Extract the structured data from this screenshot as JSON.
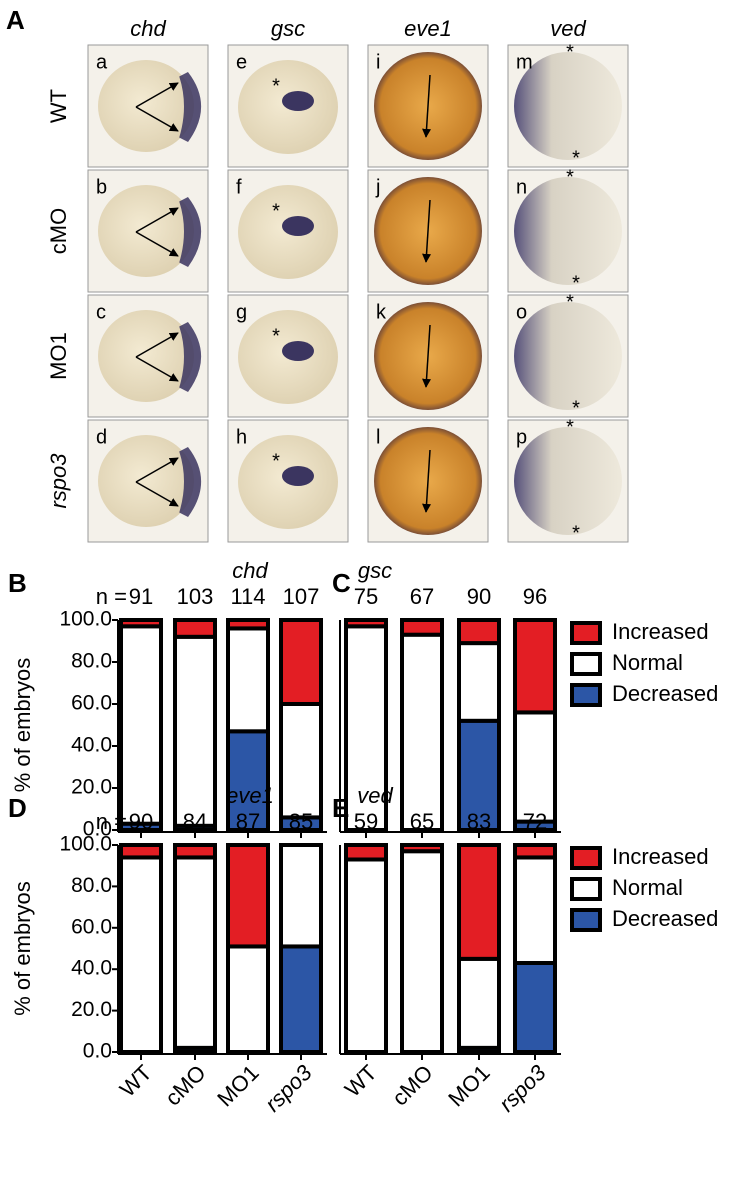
{
  "panel_a": {
    "label": "A",
    "columns": [
      "chd",
      "gsc",
      "eve1",
      "ved"
    ],
    "rows": [
      "WT",
      "cMO",
      "MO1",
      "rspo3"
    ],
    "letters": [
      [
        "a",
        "e",
        "i",
        "m"
      ],
      [
        "b",
        "f",
        "j",
        "n"
      ],
      [
        "c",
        "g",
        "k",
        "o"
      ],
      [
        "d",
        "h",
        "l",
        "p"
      ]
    ],
    "marker": "*"
  },
  "chart_data": [
    {
      "type": "bar",
      "stacked": true,
      "panel": "B",
      "title": "chd",
      "n_label": "n =",
      "n": [
        91,
        103,
        114,
        107
      ],
      "categories": [
        null,
        null,
        null,
        null
      ],
      "series": [
        {
          "name": "Decreased",
          "color": "#2c56a6",
          "values": [
            3,
            2,
            47,
            6
          ]
        },
        {
          "name": "Normal",
          "color": "#ffffff",
          "values": [
            94,
            90,
            49,
            54
          ]
        },
        {
          "name": "Increased",
          "color": "#e31e24",
          "values": [
            3,
            8,
            4,
            40
          ]
        }
      ],
      "ylabel": "% of embryos",
      "ylim": [
        0,
        100
      ],
      "yticks": [
        {
          "value": 0,
          "label": "0.0"
        },
        {
          "value": 20,
          "label": "20.0"
        },
        {
          "value": 40,
          "label": "40.0"
        },
        {
          "value": 60,
          "label": "60.0"
        },
        {
          "value": 80,
          "label": "80.0"
        },
        {
          "value": 100,
          "label": "100.0"
        }
      ],
      "legend": false
    },
    {
      "type": "bar",
      "stacked": true,
      "panel": "C",
      "title": "gsc",
      "n": [
        75,
        67,
        90,
        96
      ],
      "categories": [
        null,
        null,
        null,
        null
      ],
      "series": [
        {
          "name": "Decreased",
          "color": "#2c56a6",
          "values": [
            0,
            0,
            52,
            4
          ]
        },
        {
          "name": "Normal",
          "color": "#ffffff",
          "values": [
            97,
            93,
            37,
            52
          ]
        },
        {
          "name": "Increased",
          "color": "#e31e24",
          "values": [
            3,
            7,
            11,
            44
          ]
        }
      ],
      "ylim": [
        0,
        100
      ],
      "legend": true
    },
    {
      "type": "bar",
      "stacked": true,
      "panel": "D",
      "title": "eve1",
      "n_label": "n =",
      "n": [
        90,
        84,
        87,
        85
      ],
      "categories": [
        "WT",
        "cMO",
        "MO1",
        "rspo3"
      ],
      "series": [
        {
          "name": "Decreased",
          "color": "#2c56a6",
          "values": [
            0,
            2,
            0,
            51
          ]
        },
        {
          "name": "Normal",
          "color": "#ffffff",
          "values": [
            94,
            92,
            51,
            49
          ]
        },
        {
          "name": "Increased",
          "color": "#e31e24",
          "values": [
            6,
            6,
            49,
            0
          ]
        }
      ],
      "ylabel": "% of embryos",
      "ylim": [
        0,
        100
      ],
      "yticks": [
        {
          "value": 0,
          "label": "0.0"
        },
        {
          "value": 20,
          "label": "20.0"
        },
        {
          "value": 40,
          "label": "40.0"
        },
        {
          "value": 60,
          "label": "60.0"
        },
        {
          "value": 80,
          "label": "80.0"
        },
        {
          "value": 100,
          "label": "100.0"
        }
      ],
      "legend": false
    },
    {
      "type": "bar",
      "stacked": true,
      "panel": "E",
      "title": "ved",
      "n": [
        59,
        65,
        83,
        72
      ],
      "categories": [
        "WT",
        "cMO",
        "MO1",
        "rspo3"
      ],
      "series": [
        {
          "name": "Decreased",
          "color": "#2c56a6",
          "values": [
            0,
            0,
            2,
            43
          ]
        },
        {
          "name": "Normal",
          "color": "#ffffff",
          "values": [
            93,
            97,
            43,
            51
          ]
        },
        {
          "name": "Increased",
          "color": "#e31e24",
          "values": [
            7,
            3,
            55,
            6
          ]
        }
      ],
      "ylim": [
        0,
        100
      ],
      "legend": true
    }
  ]
}
